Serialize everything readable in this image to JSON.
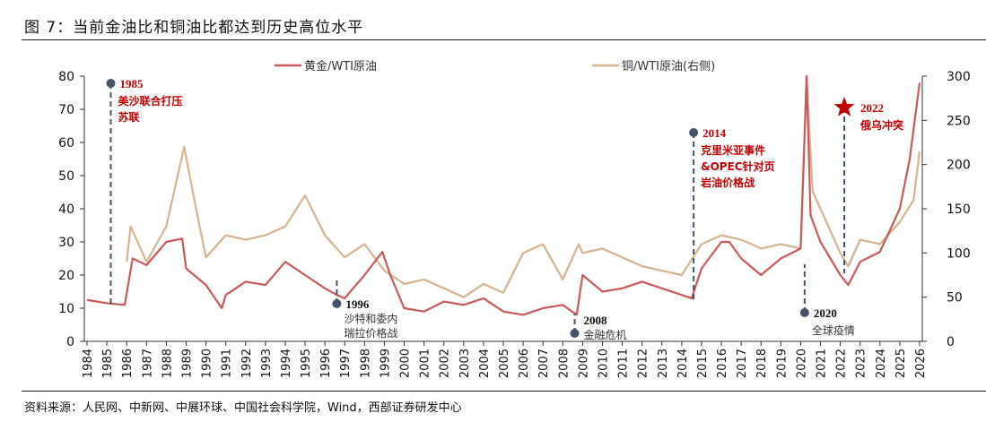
{
  "title": "图 7：当前金油比和铜油比都达到历史高位水平",
  "source": "资料来源：人民网、中新网、中展环球、中国社会科学院，Wind，西部证券研发中心",
  "chart_data": {
    "type": "line",
    "xlim": [
      1984,
      2026
    ],
    "x_ticks": [
      "1984",
      "1985",
      "1986",
      "1987",
      "1988",
      "1989",
      "1990",
      "1991",
      "1992",
      "1993",
      "1994",
      "1995",
      "1996",
      "1997",
      "1998",
      "1999",
      "2000",
      "2001",
      "2002",
      "2003",
      "2004",
      "2005",
      "2006",
      "2007",
      "2008",
      "2009",
      "2010",
      "2011",
      "2012",
      "2013",
      "2014",
      "2015",
      "2016",
      "2017",
      "2018",
      "2019",
      "2020",
      "2021",
      "2022",
      "2023",
      "2024",
      "2025",
      "2026"
    ],
    "y_left": {
      "lim": [
        0,
        80
      ],
      "ticks": [
        "0",
        "10",
        "20",
        "30",
        "40",
        "50",
        "60",
        "70",
        "80"
      ]
    },
    "y_right": {
      "lim": [
        0,
        300
      ],
      "ticks": [
        "0",
        "50",
        "100",
        "150",
        "200",
        "250",
        "300"
      ]
    },
    "legend_position": "top",
    "series": [
      {
        "name": "黄金/WTI原油",
        "axis": "left",
        "color": "#c9595a",
        "x": [
          1984,
          1985,
          1985.9,
          1986.3,
          1987,
          1988,
          1988.8,
          1989,
          1990,
          1990.8,
          1991,
          1992,
          1993,
          1994,
          1995,
          1996,
          1996.6,
          1997,
          1998,
          1998.9,
          1999.3,
          2000,
          2001,
          2002,
          2003,
          2004,
          2005,
          2006,
          2007,
          2008,
          2008.7,
          2009,
          2010,
          2011,
          2012,
          2013,
          2014,
          2014.5,
          2015,
          2016,
          2016.4,
          2017,
          2018,
          2019,
          2020,
          2020.3,
          2020.5,
          2021,
          2021.5,
          2022,
          2022.4,
          2023,
          2024,
          2025,
          2025.5,
          2026
        ],
        "y": [
          12.5,
          11.5,
          11,
          25,
          23,
          30,
          31,
          22,
          17,
          10,
          14,
          18,
          17,
          24,
          20,
          16,
          14,
          13,
          20,
          27,
          20,
          10,
          9,
          12,
          11,
          13,
          9,
          8,
          10,
          11,
          8,
          20,
          15,
          16,
          18,
          16,
          14,
          13,
          22,
          30,
          30,
          25,
          20,
          25,
          28,
          80,
          38,
          30,
          25,
          20,
          17,
          24,
          27,
          40,
          55,
          78
        ]
      },
      {
        "name": "铜/WTI原油(右侧)",
        "axis": "right",
        "color": "#d6b48f",
        "x": [
          1986,
          1986.2,
          1987,
          1988,
          1988.9,
          1989.5,
          1990,
          1991,
          1992,
          1993,
          1994,
          1995,
          1996,
          1997,
          1998,
          1999,
          2000,
          2001,
          2002,
          2003,
          2004,
          2005,
          2006,
          2007,
          2008,
          2008.8,
          2009,
          2010,
          2011,
          2012,
          2013,
          2014,
          2015,
          2016,
          2017,
          2018,
          2019,
          2020,
          2020.3,
          2020.6,
          2021,
          2022,
          2022.4,
          2023,
          2024,
          2025,
          2025.7,
          2026
        ],
        "y": [
          90,
          130,
          90,
          130,
          220,
          150,
          95,
          120,
          115,
          120,
          130,
          165,
          120,
          95,
          110,
          80,
          65,
          70,
          60,
          50,
          65,
          55,
          100,
          110,
          70,
          110,
          100,
          105,
          95,
          85,
          80,
          75,
          110,
          120,
          115,
          105,
          110,
          105,
          300,
          170,
          150,
          100,
          85,
          115,
          110,
          135,
          160,
          215
        ]
      }
    ],
    "annotations": [
      {
        "year": "1985",
        "text": [
          "美沙联合打压",
          "苏联"
        ],
        "x": 1985.2,
        "marker": "dot"
      },
      {
        "year": "1996",
        "text": [
          "沙特和委内",
          "瑞拉价格战"
        ],
        "x": 1996.6,
        "marker": "dot"
      },
      {
        "year": "2008",
        "text": [
          "金融危机"
        ],
        "x": 2008.6,
        "marker": "dot"
      },
      {
        "year": "2014",
        "text": [
          "克里米亚事件",
          "&OPEC针对页",
          "岩油价格战"
        ],
        "x": 2014.6,
        "marker": "dot"
      },
      {
        "year": "2020",
        "text": [
          "全球疫情"
        ],
        "x": 2020.2,
        "marker": "dot"
      },
      {
        "year": "2022",
        "text": [
          "俄乌冲突"
        ],
        "x": 2022.2,
        "marker": "star"
      }
    ]
  }
}
